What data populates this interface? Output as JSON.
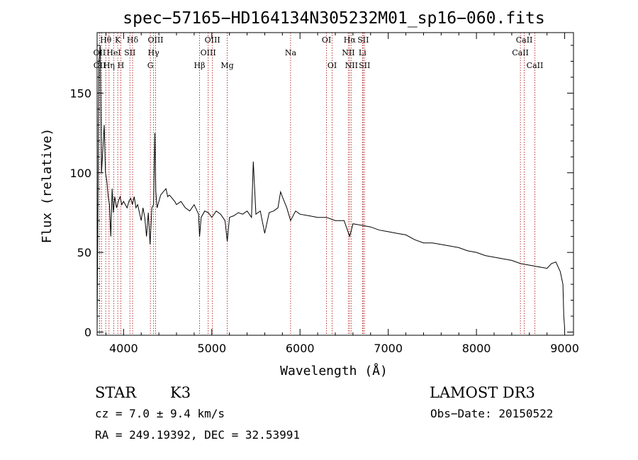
{
  "chart_data": {
    "type": "line",
    "title": "spec−57165−HD164134N305232M01_sp16−060.fits",
    "xlabel": "Wavelength (Å)",
    "ylabel": "Flux (relative)",
    "xlim": [
      3700,
      9100
    ],
    "ylim": [
      -2,
      188
    ],
    "xticks": [
      4000,
      5000,
      6000,
      7000,
      8000,
      9000
    ],
    "yticks": [
      0,
      50,
      100,
      150
    ],
    "series": [
      {
        "x": [
          3700,
          3720,
          3735,
          3750,
          3765,
          3780,
          3795,
          3810,
          3825,
          3840,
          3855,
          3870,
          3885,
          3900,
          3920,
          3940,
          3960,
          3980,
          4000,
          4020,
          4040,
          4060,
          4080,
          4100,
          4120,
          4140,
          4160,
          4180,
          4200,
          4220,
          4240,
          4260,
          4280,
          4300,
          4320,
          4340,
          4355,
          4365,
          4380,
          4400,
          4420,
          4450,
          4480,
          4500,
          4520,
          4550,
          4580,
          4600,
          4650,
          4700,
          4750,
          4800,
          4850,
          4861,
          4880,
          4920,
          4960,
          5000,
          5050,
          5100,
          5150,
          5175,
          5200,
          5250,
          5300,
          5350,
          5400,
          5450,
          5470,
          5500,
          5550,
          5600,
          5650,
          5700,
          5750,
          5780,
          5800,
          5850,
          5893,
          5950,
          6000,
          6100,
          6200,
          6300,
          6400,
          6500,
          6563,
          6600,
          6700,
          6800,
          6900,
          7000,
          7100,
          7200,
          7300,
          7400,
          7500,
          7600,
          7700,
          7800,
          7900,
          8000,
          8100,
          8200,
          8300,
          8400,
          8500,
          8600,
          8700,
          8800,
          8850,
          8900,
          8950,
          8980,
          8990,
          9000
        ],
        "y": [
          2,
          170,
          180,
          100,
          115,
          130,
          100,
          95,
          85,
          80,
          60,
          90,
          75,
          85,
          78,
          82,
          85,
          80,
          82,
          80,
          78,
          82,
          84,
          80,
          85,
          78,
          80,
          75,
          70,
          78,
          72,
          60,
          75,
          55,
          78,
          80,
          125,
          88,
          78,
          82,
          86,
          88,
          90,
          85,
          86,
          84,
          82,
          80,
          82,
          78,
          76,
          80,
          74,
          60,
          72,
          76,
          75,
          72,
          76,
          74,
          70,
          57,
          72,
          73,
          75,
          74,
          76,
          72,
          107,
          74,
          76,
          62,
          75,
          76,
          78,
          88,
          85,
          78,
          70,
          76,
          74,
          73,
          72,
          72,
          70,
          70,
          60,
          68,
          67,
          66,
          64,
          63,
          62,
          61,
          58,
          56,
          56,
          55,
          54,
          53,
          51,
          50,
          48,
          47,
          46,
          45,
          43,
          42,
          41,
          40,
          43,
          44,
          38,
          30,
          10,
          2
        ]
      }
    ],
    "lines": [
      {
        "x": 3727,
        "label": "OII",
        "row": 1
      },
      {
        "x": 3729,
        "label": "OII",
        "row": 2
      },
      {
        "x": 3750,
        "label": "",
        "row": 0
      },
      {
        "x": 3798,
        "label": "Hθ",
        "row": 0
      },
      {
        "x": 3835,
        "label": "Hη",
        "row": 2
      },
      {
        "x": 3889,
        "label": "HeI",
        "row": 1
      },
      {
        "x": 3934,
        "label": "K",
        "row": 0
      },
      {
        "x": 3969,
        "label": "H",
        "row": 2
      },
      {
        "x": 4072,
        "label": "SII",
        "row": 1
      },
      {
        "x": 4102,
        "label": "Hδ",
        "row": 0
      },
      {
        "x": 4304,
        "label": "G",
        "row": 2
      },
      {
        "x": 4340,
        "label": "Hγ",
        "row": 1
      },
      {
        "x": 4363,
        "label": "OIII",
        "row": 0
      },
      {
        "x": 4861,
        "label": "Hβ",
        "row": 2
      },
      {
        "x": 4959,
        "label": "OIII",
        "row": 1
      },
      {
        "x": 5007,
        "label": "OIII",
        "row": 0
      },
      {
        "x": 5175,
        "label": "Mg",
        "row": 2
      },
      {
        "x": 5893,
        "label": "Na",
        "row": 1
      },
      {
        "x": 6300,
        "label": "OI",
        "row": 0
      },
      {
        "x": 6364,
        "label": "OI",
        "row": 2
      },
      {
        "x": 6548,
        "label": "NII",
        "row": 1
      },
      {
        "x": 6563,
        "label": "Hα",
        "row": 0
      },
      {
        "x": 6583,
        "label": "NII",
        "row": 2
      },
      {
        "x": 6708,
        "label": "Li",
        "row": 1
      },
      {
        "x": 6716,
        "label": "SII",
        "row": 0
      },
      {
        "x": 6731,
        "label": "SII",
        "row": 2
      },
      {
        "x": 8498,
        "label": "CaII",
        "row": 1
      },
      {
        "x": 8542,
        "label": "CaII",
        "row": 0
      },
      {
        "x": 8662,
        "label": "CaII",
        "row": 2
      }
    ],
    "grid": false
  },
  "info": {
    "class_label": "STAR",
    "subclass": "K3",
    "survey": "LAMOST DR3",
    "cz": "cz = 7.0 ± 9.4 km/s",
    "obs_date": "Obs−Date: 20150522",
    "coords": "RA = 249.19392, DEC =  32.53991"
  },
  "colors": {
    "line_marker": "#b22222",
    "spectrum": "#000000"
  }
}
